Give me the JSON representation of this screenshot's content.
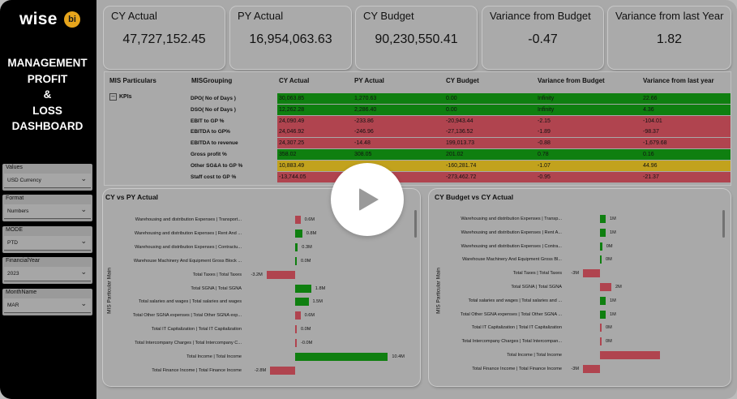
{
  "brand": {
    "word": "wise",
    "badge": "bi"
  },
  "dashboard_title": [
    "MANAGEMENT",
    "PROFIT",
    "&",
    "LOSS",
    "DASHBOARD"
  ],
  "slicers": [
    {
      "label": "Values",
      "value": "USD Currency"
    },
    {
      "label": "Format",
      "value": "Numbers"
    },
    {
      "label": "MODE",
      "value": "PTD"
    },
    {
      "label": "FinancialYear",
      "value": "2023"
    },
    {
      "label": "MonthName",
      "value": "MAR"
    }
  ],
  "kpis": [
    {
      "title": "CY Actual",
      "value": "47,727,152.45"
    },
    {
      "title": "PY Actual",
      "value": "16,954,063.63"
    },
    {
      "title": "CY Budget",
      "value": "90,230,550.41"
    },
    {
      "title": "Variance from Budget",
      "value": "-0.47"
    },
    {
      "title": "Variance from last Year",
      "value": "1.82"
    }
  ],
  "table": {
    "headers": [
      "MIS Particulars",
      "MISGrouping",
      "CY Actual",
      "PY Actual",
      "CY Budget",
      "Variance from Budget",
      "Variance from last year"
    ],
    "group": "KPIs",
    "rows": [
      {
        "label": "DPO( No of Days )",
        "cy": "30,063.85",
        "py": "1,270.63",
        "bud": "0.00",
        "vb": "Infinity",
        "vly": "22.66",
        "color": "#0f7f10"
      },
      {
        "label": "DSO( No of Days )",
        "cy": "12,262.28",
        "py": "2,286.40",
        "bud": "0.00",
        "vb": "Infinity",
        "vly": "4.36",
        "color": "#0f7f10"
      },
      {
        "label": "EBIT to GP %",
        "cy": "24,090.49",
        "py": "-233.86",
        "bud": "-20,943.44",
        "vb": "-2.15",
        "vly": "-104.01",
        "color": "#b0444f"
      },
      {
        "label": "EBITDA to GP%",
        "cy": "24,046.92",
        "py": "-246.96",
        "bud": "-27,136.52",
        "vb": "-1.89",
        "vly": "-98.37",
        "color": "#b0444f"
      },
      {
        "label": "EBITDA to revenue",
        "cy": "24,307.25",
        "py": "-14.48",
        "bud": "199,013.73",
        "vb": "-0.88",
        "vly": "-1,679.68",
        "color": "#b0444f"
      },
      {
        "label": "Gross profit %",
        "cy": "358.02",
        "py": "308.05",
        "bud": "201.02",
        "vb": "0.78",
        "vly": "0.16",
        "color": "#0f7f10"
      },
      {
        "label": "Other SG&A to GP %",
        "cy": "10,883.49",
        "py": "",
        "bud": "-160,281.74",
        "vb": "-1.07",
        "vly": "44.96",
        "color": "#c2a21d"
      },
      {
        "label": "Staff cost to GP %",
        "cy": "-13,744.05",
        "py": "",
        "bud": "-273,462.72",
        "vb": "-0.95",
        "vly": "-21.37",
        "color": "#b0444f"
      }
    ]
  },
  "chart_data": [
    {
      "type": "bar",
      "title": "CY vs PY Actual",
      "ylabel": "MIS Particular Main",
      "categories": [
        "Warehousing and distribution Expenses | Transport...",
        "Warehousing and distribution Expenses | Rent And ...",
        "Warehousing and distribution Expenses | Contractu...",
        "Warehouse Machinery And Equipment Gross Block ...",
        "Total Taxes | Total Taxes",
        "Total SGNA | Total SGNA",
        "Total salaries and wages | Total salaries and wages",
        "Total Other SGNA expenses | Total Other SGNA exp...",
        "Total IT Capitalization | Total IT Capitalization",
        "Total Intercompany Charges | Total Intercompany C...",
        "Total Income | Total Income",
        "Total Finance Income | Total Finance Income"
      ],
      "value_labels": [
        "0.6M",
        "0.8M",
        "0.3M",
        "0.0M",
        "-3.2M",
        "1.8M",
        "1.5M",
        "0.6M",
        "0.0M",
        "-0.0M",
        "10.4M",
        "-2.8M"
      ],
      "values": [
        0.6,
        0.8,
        0.3,
        0.0,
        -3.2,
        1.8,
        1.5,
        0.6,
        0.0,
        -0.0,
        10.4,
        -2.8
      ],
      "colors": [
        "#b0444f",
        "#0f7f10",
        "#0f7f10",
        "#0f7f10",
        "#b0444f",
        "#0f7f10",
        "#0f7f10",
        "#b0444f",
        "#b0444f",
        "#b0444f",
        "#0f7f10",
        "#b0444f"
      ]
    },
    {
      "type": "bar",
      "title": "CY Budget vs CY Actual",
      "ylabel": "MIS Particular Main",
      "categories": [
        "Warehousing and distribution Expenses | Transp...",
        "Warehousing and distribution Expenses | Rent A...",
        "Warehousing and distribution Expenses | Contra...",
        "Warehouse Machinery And Equipment Gross Bl...",
        "Total Taxes | Total Taxes",
        "Total SGNA | Total SGNA",
        "Total salaries and wages | Total salaries and ...",
        "Total Other SGNA expenses | Total Other SGNA ...",
        "Total IT Capitalization | Total IT Capitalization",
        "Total Intercompany Charges | Total Intercompan...",
        "Total Income | Total Income",
        "Total Finance Income | Total Finance Income"
      ],
      "value_labels": [
        "1M",
        "1M",
        "0M",
        "0M",
        "-3M",
        "2M",
        "1M",
        "1M",
        "0M",
        "0M",
        "",
        "-3M"
      ],
      "values": [
        1,
        1,
        0.4,
        0,
        -3,
        2,
        1,
        1,
        0,
        0,
        10.5,
        -3
      ],
      "colors": [
        "#0f7f10",
        "#0f7f10",
        "#0f7f10",
        "#0f7f10",
        "#b0444f",
        "#b0444f",
        "#0f7f10",
        "#0f7f10",
        "#b0444f",
        "#b0444f",
        "#b0444f",
        "#b0444f"
      ]
    }
  ]
}
